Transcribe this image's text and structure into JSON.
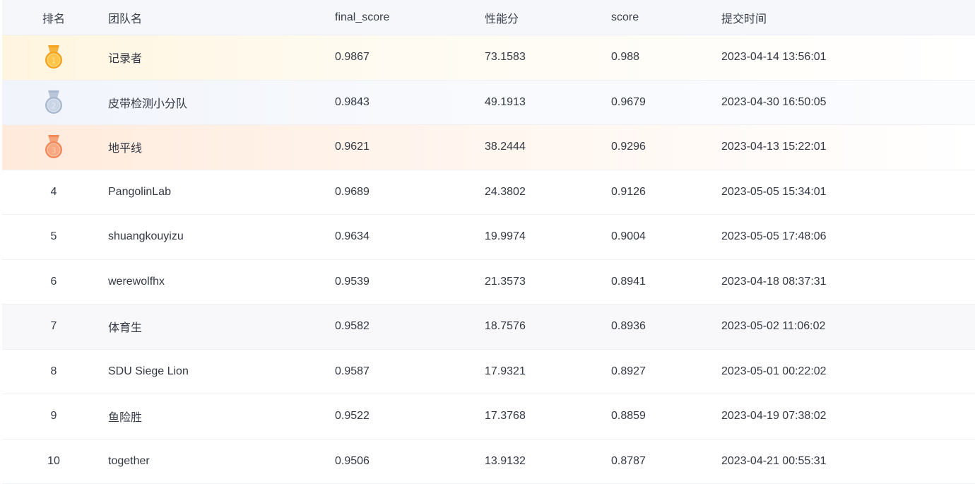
{
  "headers": {
    "rank": "排名",
    "team": "团队名",
    "final_score": "final_score",
    "perf": "性能分",
    "score": "score",
    "time": "提交时间"
  },
  "colors": {
    "gold": "#f5a623",
    "silver": "#9fb1cc",
    "bronze": "#f08a5a",
    "header_bg": "#f5f7fb"
  },
  "rows": [
    {
      "rank": "1",
      "medal": "gold-medal-icon",
      "team": "记录者",
      "final_score": "0.9867",
      "perf": "73.1583",
      "score": "0.988",
      "time": "2023-04-14 13:56:01"
    },
    {
      "rank": "2",
      "medal": "silver-medal-icon",
      "team": "皮带检测小分队",
      "final_score": "0.9843",
      "perf": "49.1913",
      "score": "0.9679",
      "time": "2023-04-30 16:50:05"
    },
    {
      "rank": "3",
      "medal": "bronze-medal-icon",
      "team": "地平线",
      "final_score": "0.9621",
      "perf": "38.2444",
      "score": "0.9296",
      "time": "2023-04-13 15:22:01"
    },
    {
      "rank": "4",
      "team": "PangolinLab",
      "final_score": "0.9689",
      "perf": "24.3802",
      "score": "0.9126",
      "time": "2023-05-05 15:34:01"
    },
    {
      "rank": "5",
      "team": "shuangkouyizu",
      "final_score": "0.9634",
      "perf": "19.9974",
      "score": "0.9004",
      "time": "2023-05-05 17:48:06"
    },
    {
      "rank": "6",
      "team": "werewolfhx",
      "final_score": "0.9539",
      "perf": "21.3573",
      "score": "0.8941",
      "time": "2023-04-18 08:37:31"
    },
    {
      "rank": "7",
      "team": "体育生",
      "final_score": "0.9582",
      "perf": "18.7576",
      "score": "0.8936",
      "time": "2023-05-02 11:06:02"
    },
    {
      "rank": "8",
      "team": "SDU Siege Lion",
      "final_score": "0.9587",
      "perf": "17.9321",
      "score": "0.8927",
      "time": "2023-05-01 00:22:02"
    },
    {
      "rank": "9",
      "team": "鱼险胜",
      "final_score": "0.9522",
      "perf": "17.3768",
      "score": "0.8859",
      "time": "2023-04-19 07:38:02"
    },
    {
      "rank": "10",
      "team": "together",
      "final_score": "0.9506",
      "perf": "13.9132",
      "score": "0.8787",
      "time": "2023-04-21 00:55:31"
    }
  ]
}
